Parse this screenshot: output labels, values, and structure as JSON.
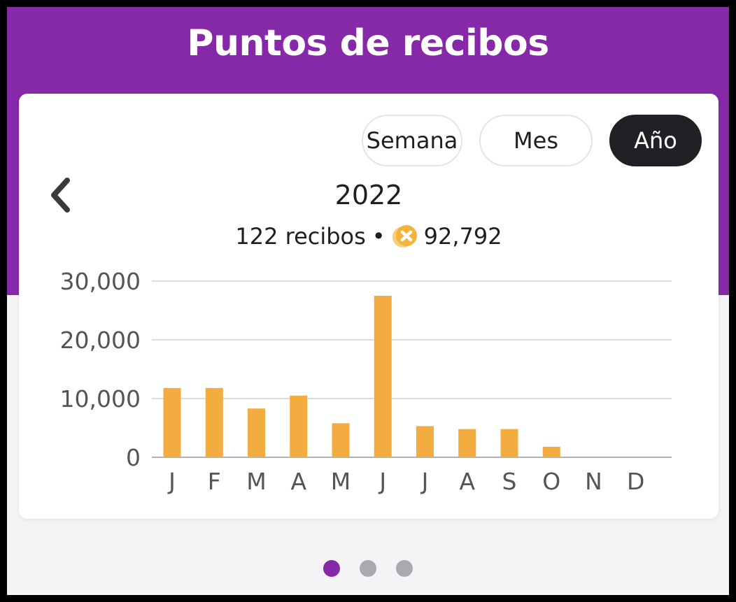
{
  "header": {
    "title": "Puntos de recibos"
  },
  "period_tabs": [
    {
      "label": "Semana",
      "active": false
    },
    {
      "label": "Mes",
      "active": false
    },
    {
      "label": "Año",
      "active": true
    }
  ],
  "summary": {
    "year": "2022",
    "receipts": "122 recibos",
    "separator": "•",
    "points": "92,792"
  },
  "colors": {
    "brand": "#8629a8",
    "bar": "#f2ac3f",
    "active_tab": "#1f2124",
    "coin": "#f2b53a"
  },
  "icons": {
    "back": "chevron-left-icon",
    "points": "coin-icon"
  },
  "chart_data": {
    "type": "bar",
    "categories": [
      "J",
      "F",
      "M",
      "A",
      "M",
      "J",
      "J",
      "A",
      "S",
      "O",
      "N",
      "D"
    ],
    "values": [
      11800,
      11800,
      8300,
      10500,
      5800,
      27500,
      5300,
      4800,
      4800,
      1800,
      0,
      0
    ],
    "ylim": [
      0,
      30000
    ],
    "yticks": [
      "0",
      "10,000",
      "20,000",
      "30,000"
    ],
    "ytick_values": [
      0,
      10000,
      20000,
      30000
    ],
    "grid": true,
    "xlabel": "",
    "ylabel": ""
  },
  "pager": {
    "count": 3,
    "active_index": 0
  }
}
